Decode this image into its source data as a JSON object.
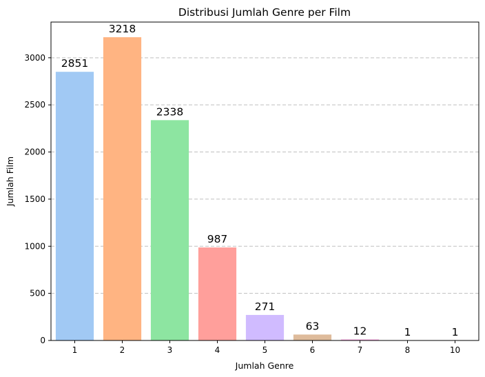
{
  "chart_data": {
    "type": "bar",
    "title": "Distribusi Jumlah Genre per Film",
    "xlabel": "Jumlah Genre",
    "ylabel": "Jumlah Film",
    "categories": [
      "1",
      "2",
      "3",
      "4",
      "5",
      "6",
      "7",
      "8",
      "10"
    ],
    "values": [
      2851,
      3218,
      2338,
      987,
      271,
      63,
      12,
      1,
      1
    ],
    "data_labels": [
      "2851",
      "3218",
      "2338",
      "987",
      "271",
      "63",
      "12",
      "1",
      "1"
    ],
    "yticks": [
      0,
      500,
      1000,
      1500,
      2000,
      2500,
      3000
    ],
    "ylim": [
      0,
      3379
    ],
    "grid": "y-dashed",
    "colors": [
      "#a1c9f4",
      "#ffb482",
      "#8de5a1",
      "#ff9f9b",
      "#d0bbff",
      "#debb9b",
      "#fab0e4",
      "#cfcfcf",
      "#fffea3"
    ]
  }
}
